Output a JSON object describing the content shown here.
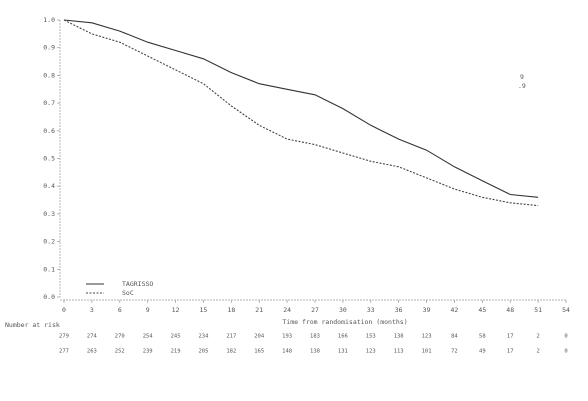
{
  "chart_data": {
    "type": "line",
    "x_label": "Time from randomisation (months)",
    "risk_table_label": "Number at risk",
    "x": [
      0,
      3,
      6,
      9,
      12,
      15,
      18,
      21,
      24,
      27,
      30,
      33,
      36,
      39,
      42,
      45,
      48,
      51
    ],
    "series": [
      {
        "name": "TAGRISSO",
        "color": "#333333",
        "dash": false,
        "values": [
          1.0,
          0.99,
          0.96,
          0.92,
          0.89,
          0.86,
          0.81,
          0.77,
          0.75,
          0.73,
          0.68,
          0.62,
          0.57,
          0.53,
          0.47,
          0.42,
          0.37,
          0.36
        ],
        "at_risk": [
          279,
          274,
          270,
          254,
          245,
          234,
          217,
          204,
          193,
          183,
          166,
          153,
          138,
          123,
          84,
          58,
          17,
          2,
          0
        ]
      },
      {
        "name": "SoC",
        "color": "#444444",
        "dash": true,
        "values": [
          1.0,
          0.95,
          0.92,
          0.87,
          0.82,
          0.77,
          0.69,
          0.62,
          0.57,
          0.55,
          0.52,
          0.49,
          0.47,
          0.43,
          0.39,
          0.36,
          0.34,
          0.33
        ],
        "at_risk": [
          277,
          263,
          252,
          239,
          219,
          205,
          182,
          165,
          148,
          138,
          131,
          123,
          113,
          101,
          72,
          49,
          17,
          2,
          0
        ]
      }
    ],
    "xlim": [
      0,
      54
    ],
    "xticks": [
      0,
      3,
      6,
      9,
      12,
      15,
      18,
      21,
      24,
      27,
      30,
      33,
      36,
      39,
      42,
      45,
      48,
      51,
      54
    ],
    "ylim": [
      0,
      1
    ],
    "yticks": [
      {
        "value": 0,
        "label": "0.0"
      },
      0.1,
      0.2,
      0.3,
      0.4,
      0.5,
      0.6,
      0.7,
      0.8,
      0.9,
      {
        "value": 1,
        "label": "1.0"
      }
    ],
    "legend": "lower left",
    "annotations": [
      "9",
      ".9"
    ]
  }
}
